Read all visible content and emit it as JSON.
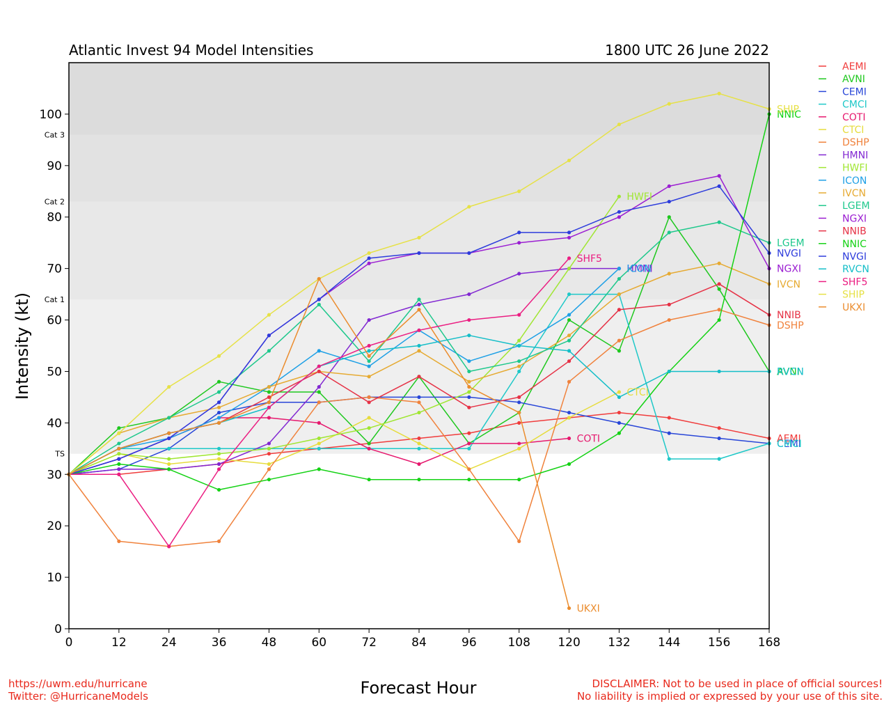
{
  "header": {
    "title_left": "Atlantic Invest 94 Model Intensities",
    "title_right": "1800 UTC 26 June 2022"
  },
  "footer": {
    "url": "https://uwm.edu/hurricane",
    "twitter": "Twitter: @HurricaneModels",
    "disclaimer_1": "DISCLAIMER: Not to be used in place of official sources!",
    "disclaimer_2": "No liability is implied or expressed by your use of this site."
  },
  "chart_data": {
    "type": "line",
    "xlabel": "Forecast Hour",
    "ylabel": "Intensity (kt)",
    "xlim": [
      0,
      168
    ],
    "ylim": [
      0,
      110
    ],
    "x_ticks": [
      0,
      12,
      24,
      36,
      48,
      60,
      72,
      84,
      96,
      108,
      120,
      132,
      144,
      156,
      168
    ],
    "y_ticks": [
      0,
      10,
      20,
      30,
      40,
      50,
      60,
      70,
      80,
      90,
      100
    ],
    "grid": false,
    "legend_position": "right",
    "bands": [
      {
        "label": "TS",
        "from": 34,
        "to": 64,
        "color": "#efefef"
      },
      {
        "label": "Cat 1",
        "from": 64,
        "to": 83,
        "color": "#e8e8e8"
      },
      {
        "label": "Cat 2",
        "from": 83,
        "to": 96,
        "color": "#e2e2e2"
      },
      {
        "label": "Cat 3",
        "from": 96,
        "to": 110,
        "color": "#dcdcdc"
      }
    ],
    "series": [
      {
        "name": "AEMI",
        "color": "#f03c3c",
        "end_label": "AEMI",
        "x": [
          0,
          12,
          24,
          36,
          48,
          60,
          72,
          84,
          96,
          108,
          120,
          132,
          144,
          156,
          168
        ],
        "values": [
          30,
          30,
          31,
          32,
          34,
          35,
          36,
          37,
          38,
          40,
          41,
          42,
          41,
          39,
          37
        ]
      },
      {
        "name": "AVNI",
        "color": "#1ec81e",
        "end_label": "AVNI",
        "x": [
          0,
          12,
          24,
          36,
          48,
          60,
          72,
          84,
          96,
          108,
          120,
          132,
          144,
          156,
          168
        ],
        "values": [
          30,
          39,
          41,
          48,
          46,
          46,
          36,
          49,
          36,
          42,
          60,
          54,
          80,
          66,
          50
        ]
      },
      {
        "name": "CEMI",
        "color": "#2846d8",
        "end_label": "CEMI",
        "x": [
          0,
          12,
          24,
          36,
          48,
          60,
          72,
          84,
          96,
          108,
          120,
          132,
          144,
          156,
          168
        ],
        "values": [
          30,
          31,
          35,
          42,
          44,
          44,
          45,
          45,
          45,
          44,
          42,
          40,
          38,
          37,
          36
        ]
      },
      {
        "name": "CMCI",
        "color": "#1ec8c8",
        "end_label": "CMCI",
        "x": [
          0,
          12,
          24,
          36,
          48,
          60,
          72,
          84,
          96,
          108,
          120,
          132,
          144,
          156,
          168
        ],
        "values": [
          30,
          35,
          35,
          35,
          35,
          35,
          35,
          35,
          35,
          50,
          65,
          65,
          33,
          33,
          36
        ]
      },
      {
        "name": "COTI",
        "color": "#e6196e",
        "end_label": "COTI",
        "x": [
          0,
          12,
          24,
          36,
          48,
          60,
          72,
          84,
          96,
          108,
          120
        ],
        "values": [
          30,
          33,
          37,
          41,
          41,
          40,
          35,
          32,
          36,
          36,
          37
        ]
      },
      {
        "name": "CTCI",
        "color": "#e6dc3c",
        "end_label": "CTCI",
        "x": [
          0,
          12,
          24,
          36,
          48,
          60,
          72,
          84,
          96,
          108,
          120,
          132
        ],
        "values": [
          30,
          34,
          32,
          33,
          32,
          36,
          41,
          36,
          31,
          35,
          41,
          46
        ]
      },
      {
        "name": "DSHP",
        "color": "#f0823c",
        "end_label": "DSHP",
        "x": [
          0,
          12,
          24,
          36,
          48,
          60,
          72,
          84,
          96,
          108,
          120,
          132,
          144,
          156,
          168
        ],
        "values": [
          30,
          17,
          16,
          17,
          31,
          44,
          45,
          44,
          31,
          17,
          48,
          56,
          60,
          62,
          59
        ]
      },
      {
        "name": "HMNI",
        "color": "#8228d2",
        "end_label": "HMNI",
        "x": [
          0,
          12,
          24,
          36,
          48,
          60,
          72,
          84,
          96,
          108,
          120,
          132
        ],
        "values": [
          30,
          31,
          31,
          32,
          36,
          47,
          60,
          63,
          65,
          69,
          70,
          70
        ]
      },
      {
        "name": "HWFI",
        "color": "#a0e632",
        "end_label": "HWFI",
        "x": [
          0,
          12,
          24,
          36,
          48,
          60,
          72,
          84,
          96,
          108,
          120,
          132
        ],
        "values": [
          30,
          34,
          33,
          34,
          35,
          37,
          39,
          42,
          46,
          56,
          70,
          84
        ]
      },
      {
        "name": "ICON",
        "color": "#1ea0e6",
        "end_label": "ICON",
        "x": [
          0,
          12,
          24,
          36,
          48,
          60,
          72,
          84,
          96,
          108,
          120,
          132
        ],
        "values": [
          30,
          35,
          37,
          41,
          47,
          54,
          51,
          58,
          52,
          55,
          61,
          70
        ]
      },
      {
        "name": "IVCN",
        "color": "#e6aa32",
        "end_label": "IVCN",
        "x": [
          0,
          12,
          24,
          36,
          48,
          60,
          72,
          84,
          96,
          108,
          120,
          132,
          144,
          156,
          168
        ],
        "values": [
          30,
          38,
          41,
          43,
          47,
          50,
          49,
          54,
          48,
          51,
          57,
          65,
          69,
          71,
          67
        ]
      },
      {
        "name": "LGEM",
        "color": "#1ec88c",
        "end_label": "LGEM",
        "x": [
          0,
          12,
          24,
          36,
          48,
          60,
          72,
          84,
          96,
          108,
          120,
          132,
          144,
          156,
          168
        ],
        "values": [
          30,
          36,
          41,
          46,
          54,
          63,
          52,
          64,
          50,
          52,
          56,
          68,
          77,
          79,
          75
        ]
      },
      {
        "name": "NGXI",
        "color": "#9b1ed2",
        "end_label": "NGXI",
        "x": [
          0,
          12,
          24,
          36,
          48,
          60,
          72,
          84,
          96,
          108,
          120,
          132,
          144,
          156,
          168
        ],
        "values": [
          30,
          33,
          37,
          44,
          57,
          64,
          71,
          73,
          73,
          75,
          76,
          80,
          86,
          88,
          70
        ]
      },
      {
        "name": "NNIB",
        "color": "#e63246",
        "end_label": "NNIB",
        "x": [
          0,
          12,
          24,
          36,
          48,
          60,
          72,
          84,
          96,
          108,
          120,
          132,
          144,
          156,
          168
        ],
        "values": [
          30,
          35,
          38,
          40,
          45,
          50,
          44,
          49,
          43,
          45,
          52,
          62,
          63,
          67,
          61
        ]
      },
      {
        "name": "NNIC",
        "color": "#14d214",
        "end_label": "NNIC",
        "x": [
          0,
          12,
          24,
          36,
          48,
          60,
          72,
          84,
          96,
          108,
          120,
          132,
          144,
          156,
          168
        ],
        "values": [
          30,
          32,
          31,
          27,
          29,
          31,
          29,
          29,
          29,
          29,
          32,
          38,
          50,
          60,
          100
        ]
      },
      {
        "name": "NVGI",
        "color": "#2d3cdc",
        "end_label": "NVGI",
        "x": [
          0,
          12,
          24,
          36,
          48,
          60,
          72,
          84,
          96,
          108,
          120,
          132,
          144,
          156,
          168
        ],
        "values": [
          30,
          33,
          37,
          44,
          57,
          64,
          72,
          73,
          73,
          77,
          77,
          81,
          83,
          86,
          73
        ]
      },
      {
        "name": "RVCN",
        "color": "#14bec8",
        "end_label": "RVCN",
        "x": [
          0,
          12,
          24,
          36,
          48,
          60,
          72,
          84,
          96,
          108,
          120,
          132,
          144,
          156,
          168
        ],
        "values": [
          30,
          35,
          38,
          40,
          43,
          51,
          54,
          55,
          57,
          55,
          54,
          45,
          50,
          50,
          50
        ]
      },
      {
        "name": "SHF5",
        "color": "#eb1e82",
        "end_label": "SHF5",
        "x": [
          0,
          12,
          24,
          36,
          48,
          60,
          72,
          84,
          96,
          108,
          120
        ],
        "values": [
          30,
          30,
          16,
          31,
          43,
          51,
          55,
          58,
          60,
          61,
          72
        ]
      },
      {
        "name": "SHIP",
        "color": "#e6e146",
        "end_label": "SHIP",
        "x": [
          0,
          12,
          24,
          36,
          48,
          60,
          72,
          84,
          96,
          108,
          120,
          132,
          144,
          156,
          168
        ],
        "values": [
          30,
          38,
          47,
          53,
          61,
          68,
          73,
          76,
          82,
          85,
          91,
          98,
          102,
          104,
          101
        ]
      },
      {
        "name": "UKXI",
        "color": "#eb8c2d",
        "end_label": "UKXI",
        "x": [
          0,
          12,
          24,
          36,
          48,
          60,
          72,
          84,
          96,
          108,
          120
        ],
        "values": [
          30,
          35,
          38,
          40,
          44,
          68,
          53,
          62,
          47,
          42,
          4
        ]
      }
    ]
  }
}
